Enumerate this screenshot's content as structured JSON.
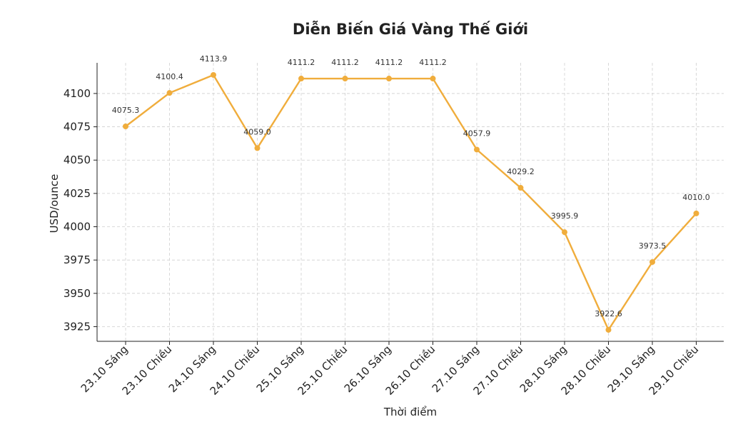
{
  "chart_data": {
    "type": "line",
    "title": "Diễn Biến Giá Vàng Thế Giới",
    "xlabel": "Thời điểm",
    "ylabel": "USD/ounce",
    "categories": [
      "23.10 Sáng",
      "23.10 Chiều",
      "24.10 Sáng",
      "24.10 Chiều",
      "25.10 Sáng",
      "25.10 Chiều",
      "26.10 Sáng",
      "26.10 Chiều",
      "27.10 Sáng",
      "27.10 Chiều",
      "28.10 Sáng",
      "28.10 Chiều",
      "29.10 Sáng",
      "29.10 Chiều"
    ],
    "values": [
      4075.3,
      4100.4,
      4113.9,
      4059.0,
      4111.2,
      4111.2,
      4111.2,
      4111.2,
      4057.9,
      4029.2,
      3995.9,
      3922.6,
      3973.5,
      4010.0
    ],
    "data_labels": [
      "4075.3",
      "4100.4",
      "4113.9",
      "4059.0",
      "4111.2",
      "4111.2",
      "4111.2",
      "4111.2",
      "4057.9",
      "4029.2",
      "3995.9",
      "3922.6",
      "3973.5",
      "4010.0"
    ],
    "yticks": [
      3925,
      3950,
      3975,
      4000,
      4025,
      4050,
      4075,
      4100
    ],
    "ylim": [
      3914,
      4123
    ],
    "grid": true,
    "line_color": "#f0ad3c"
  }
}
